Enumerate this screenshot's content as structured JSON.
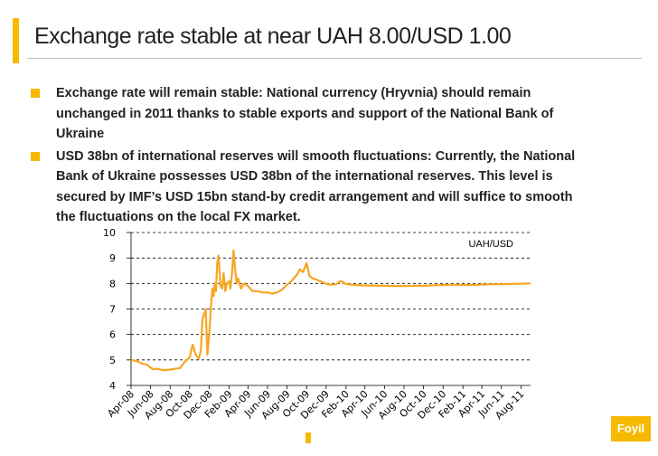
{
  "slide": {
    "title": "Exchange rate stable at near UAH 8.00/USD 1.00",
    "bullets": [
      "Exchange rate will remain stable: National currency (Hryvnia) should remain unchanged in 2011 thanks to stable exports and support of the National Bank of Ukraine",
      "USD 38bn of international reserves will smooth fluctuations: Currently, the National Bank of Ukraine possesses USD 38bn of the international reserves. This level is secured by IMF’s USD 15bn stand-by credit arrangement and will suffice to smooth the fluctuations on the local FX market."
    ],
    "logo_text": "Foyil"
  },
  "colors": {
    "accent": "#f6b900",
    "series": "#f6a623",
    "grid": "#000000",
    "text": "#222222"
  },
  "chart_data": {
    "type": "line",
    "title": "",
    "xlabel": "",
    "ylabel": "",
    "ylim": [
      4,
      10
    ],
    "yticks": [
      "4",
      "5",
      "6",
      "7",
      "8",
      "9",
      "10"
    ],
    "xticks": [
      "Apr-08",
      "Jun-08",
      "Aug-08",
      "Oct-08",
      "Dec-08",
      "Feb-09",
      "Apr-09",
      "Jun-09",
      "Aug-09",
      "Oct-09",
      "Dec-09",
      "Feb-10",
      "Apr-10",
      "Jun-10",
      "Aug-10",
      "Oct-10",
      "Dec-10",
      "Feb-11",
      "Apr-11",
      "Jun-11",
      "Aug-11"
    ],
    "grid": "horizontal dashed",
    "legend": "top-right",
    "series": [
      {
        "name": "UAH/USD",
        "x": [
          "2008-04-01",
          "2008-04-20",
          "2008-05-01",
          "2008-05-10",
          "2008-05-20",
          "2008-06-01",
          "2008-06-10",
          "2008-06-20",
          "2008-07-01",
          "2008-07-15",
          "2008-08-01",
          "2008-08-15",
          "2008-09-01",
          "2008-09-15",
          "2008-10-01",
          "2008-10-10",
          "2008-10-20",
          "2008-10-30",
          "2008-11-05",
          "2008-11-10",
          "2008-11-20",
          "2008-11-25",
          "2008-12-01",
          "2008-12-05",
          "2008-12-08",
          "2008-12-11",
          "2008-12-15",
          "2008-12-18",
          "2008-12-22",
          "2008-12-26",
          "2008-12-30",
          "2009-01-05",
          "2009-01-10",
          "2009-01-15",
          "2009-01-20",
          "2009-01-25",
          "2009-02-01",
          "2009-02-05",
          "2009-02-10",
          "2009-02-15",
          "2009-02-20",
          "2009-02-25",
          "2009-03-01",
          "2009-03-10",
          "2009-03-20",
          "2009-04-01",
          "2009-04-15",
          "2009-05-01",
          "2009-05-15",
          "2009-06-01",
          "2009-06-15",
          "2009-07-01",
          "2009-07-15",
          "2009-08-01",
          "2009-08-15",
          "2009-09-01",
          "2009-09-10",
          "2009-09-20",
          "2009-10-01",
          "2009-10-10",
          "2009-10-20",
          "2009-11-01",
          "2009-11-10",
          "2009-11-20",
          "2009-12-01",
          "2009-12-15",
          "2010-01-01",
          "2010-01-15",
          "2010-02-01",
          "2010-03-01",
          "2010-04-01",
          "2010-05-01",
          "2010-06-01",
          "2010-07-01",
          "2010-08-01",
          "2010-09-01",
          "2010-10-01",
          "2010-11-01",
          "2010-12-01",
          "2011-01-01",
          "2011-02-01",
          "2011-03-01",
          "2011-04-01",
          "2011-05-01",
          "2011-06-01",
          "2011-07-01",
          "2011-08-01",
          "2011-08-31"
        ],
        "y": [
          5.0,
          4.95,
          4.88,
          4.84,
          4.82,
          4.7,
          4.63,
          4.66,
          4.62,
          4.6,
          4.62,
          4.65,
          4.68,
          4.92,
          5.1,
          5.6,
          5.2,
          5.05,
          5.4,
          6.6,
          7.0,
          5.2,
          6.0,
          6.8,
          7.4,
          7.8,
          7.5,
          8.0,
          7.7,
          8.8,
          9.1,
          7.9,
          7.8,
          8.4,
          7.7,
          8.0,
          8.1,
          7.8,
          8.4,
          9.3,
          8.5,
          8.0,
          8.2,
          7.8,
          8.0,
          7.9,
          7.7,
          7.7,
          7.65,
          7.65,
          7.6,
          7.65,
          7.75,
          7.95,
          8.1,
          8.35,
          8.55,
          8.45,
          8.8,
          8.3,
          8.2,
          8.15,
          8.1,
          8.05,
          7.98,
          7.95,
          7.97,
          8.1,
          7.98,
          7.94,
          7.92,
          7.92,
          7.91,
          7.9,
          7.9,
          7.91,
          7.91,
          7.93,
          7.94,
          7.95,
          7.94,
          7.94,
          7.96,
          7.97,
          7.97,
          7.98,
          7.99,
          8.0
        ]
      }
    ]
  }
}
